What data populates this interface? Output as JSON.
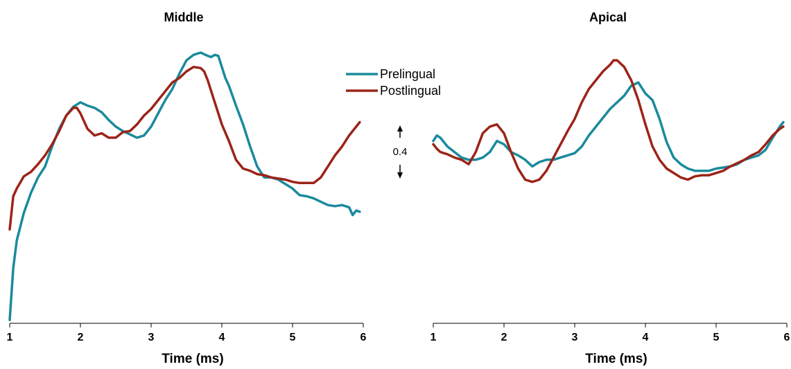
{
  "chart_data": [
    {
      "type": "line",
      "title": "Middle",
      "xlabel": "Time (ms)",
      "ylabel": "",
      "xlim": [
        1,
        6
      ],
      "ylim": [
        -1.6,
        0.95
      ],
      "xticks": [
        "1",
        "2",
        "3",
        "4",
        "5",
        "6"
      ],
      "series": [
        {
          "name": "Prelingual",
          "color": "#1a8a9c",
          "x": [
            1.0,
            1.05,
            1.1,
            1.2,
            1.3,
            1.4,
            1.5,
            1.6,
            1.7,
            1.8,
            1.9,
            2.0,
            2.1,
            2.2,
            2.3,
            2.4,
            2.5,
            2.6,
            2.7,
            2.8,
            2.9,
            3.0,
            3.1,
            3.2,
            3.3,
            3.4,
            3.5,
            3.6,
            3.7,
            3.8,
            3.85,
            3.9,
            3.95,
            4.0,
            4.05,
            4.1,
            4.2,
            4.3,
            4.4,
            4.5,
            4.6,
            4.7,
            4.8,
            4.9,
            5.0,
            5.1,
            5.2,
            5.3,
            5.4,
            5.5,
            5.6,
            5.7,
            5.8,
            5.85,
            5.9,
            5.95
          ],
          "y": [
            -1.57,
            -1.1,
            -0.85,
            -0.6,
            -0.42,
            -0.28,
            -0.18,
            0.0,
            0.16,
            0.28,
            0.36,
            0.4,
            0.37,
            0.35,
            0.31,
            0.24,
            0.18,
            0.14,
            0.11,
            0.08,
            0.1,
            0.18,
            0.3,
            0.42,
            0.52,
            0.66,
            0.78,
            0.83,
            0.85,
            0.82,
            0.81,
            0.83,
            0.82,
            0.72,
            0.62,
            0.55,
            0.37,
            0.2,
            0.0,
            -0.18,
            -0.28,
            -0.28,
            -0.3,
            -0.34,
            -0.38,
            -0.44,
            -0.45,
            -0.47,
            -0.5,
            -0.53,
            -0.54,
            -0.53,
            -0.55,
            -0.62,
            -0.58,
            -0.59
          ]
        },
        {
          "name": "Postlingual",
          "color": "#9c2318",
          "x": [
            1.0,
            1.05,
            1.1,
            1.2,
            1.3,
            1.4,
            1.5,
            1.6,
            1.7,
            1.8,
            1.9,
            1.95,
            2.0,
            2.1,
            2.2,
            2.3,
            2.4,
            2.5,
            2.6,
            2.7,
            2.8,
            2.9,
            3.0,
            3.1,
            3.2,
            3.3,
            3.4,
            3.5,
            3.6,
            3.7,
            3.75,
            3.8,
            3.85,
            3.9,
            4.0,
            4.1,
            4.2,
            4.3,
            4.4,
            4.5,
            4.6,
            4.7,
            4.8,
            4.9,
            5.0,
            5.1,
            5.2,
            5.3,
            5.4,
            5.5,
            5.6,
            5.7,
            5.8,
            5.9,
            5.95
          ],
          "y": [
            -0.75,
            -0.45,
            -0.38,
            -0.27,
            -0.23,
            -0.16,
            -0.08,
            0.02,
            0.14,
            0.28,
            0.35,
            0.35,
            0.3,
            0.16,
            0.1,
            0.12,
            0.08,
            0.08,
            0.13,
            0.14,
            0.2,
            0.28,
            0.34,
            0.42,
            0.5,
            0.58,
            0.62,
            0.68,
            0.72,
            0.71,
            0.68,
            0.6,
            0.5,
            0.4,
            0.2,
            0.05,
            -0.12,
            -0.2,
            -0.22,
            -0.25,
            -0.26,
            -0.28,
            -0.29,
            -0.3,
            -0.32,
            -0.33,
            -0.33,
            -0.33,
            -0.28,
            -0.18,
            -0.08,
            0.0,
            0.1,
            0.18,
            0.22
          ]
        }
      ]
    },
    {
      "type": "line",
      "title": "Apical",
      "xlabel": "Time (ms)",
      "ylabel": "",
      "xlim": [
        1,
        6
      ],
      "ylim": [
        -1.6,
        0.95
      ],
      "xticks": [
        "1",
        "2",
        "3",
        "4",
        "5",
        "6"
      ],
      "series": [
        {
          "name": "Prelingual",
          "color": "#1a8a9c",
          "x": [
            1.0,
            1.05,
            1.1,
            1.2,
            1.3,
            1.4,
            1.5,
            1.6,
            1.7,
            1.8,
            1.9,
            2.0,
            2.1,
            2.2,
            2.3,
            2.4,
            2.5,
            2.6,
            2.7,
            2.8,
            2.9,
            3.0,
            3.1,
            3.2,
            3.3,
            3.4,
            3.5,
            3.6,
            3.7,
            3.8,
            3.9,
            4.0,
            4.1,
            4.2,
            4.3,
            4.4,
            4.5,
            4.6,
            4.7,
            4.8,
            4.9,
            5.0,
            5.1,
            5.2,
            5.3,
            5.4,
            5.5,
            5.6,
            5.7,
            5.8,
            5.9,
            5.95
          ],
          "y": [
            0.05,
            0.1,
            0.08,
            0.0,
            -0.05,
            -0.1,
            -0.12,
            -0.12,
            -0.1,
            -0.05,
            0.05,
            0.02,
            -0.05,
            -0.08,
            -0.12,
            -0.18,
            -0.14,
            -0.12,
            -0.12,
            -0.1,
            -0.08,
            -0.06,
            0.0,
            0.1,
            0.18,
            0.26,
            0.34,
            0.4,
            0.46,
            0.55,
            0.58,
            0.48,
            0.42,
            0.25,
            0.04,
            -0.1,
            -0.16,
            -0.2,
            -0.22,
            -0.22,
            -0.22,
            -0.2,
            -0.19,
            -0.18,
            -0.16,
            -0.12,
            -0.1,
            -0.08,
            -0.03,
            0.08,
            0.18,
            0.22
          ]
        },
        {
          "name": "Postlingual",
          "color": "#9c2318",
          "x": [
            1.0,
            1.05,
            1.1,
            1.2,
            1.3,
            1.4,
            1.5,
            1.6,
            1.7,
            1.8,
            1.9,
            2.0,
            2.1,
            2.2,
            2.3,
            2.4,
            2.5,
            2.6,
            2.7,
            2.8,
            2.9,
            3.0,
            3.1,
            3.2,
            3.3,
            3.4,
            3.5,
            3.55,
            3.6,
            3.7,
            3.8,
            3.9,
            4.0,
            4.1,
            4.2,
            4.3,
            4.4,
            4.5,
            4.6,
            4.7,
            4.8,
            4.9,
            5.0,
            5.1,
            5.2,
            5.3,
            5.4,
            5.5,
            5.6,
            5.7,
            5.8,
            5.9,
            5.95
          ],
          "y": [
            0.02,
            -0.02,
            -0.05,
            -0.07,
            -0.1,
            -0.12,
            -0.16,
            -0.05,
            0.12,
            0.18,
            0.2,
            0.12,
            -0.05,
            -0.2,
            -0.3,
            -0.32,
            -0.3,
            -0.22,
            -0.1,
            0.02,
            0.14,
            0.25,
            0.4,
            0.52,
            0.6,
            0.68,
            0.74,
            0.78,
            0.78,
            0.72,
            0.6,
            0.42,
            0.2,
            0.0,
            -0.12,
            -0.2,
            -0.24,
            -0.28,
            -0.3,
            -0.27,
            -0.26,
            -0.26,
            -0.24,
            -0.22,
            -0.18,
            -0.15,
            -0.12,
            -0.08,
            -0.05,
            0.02,
            0.1,
            0.16,
            0.18
          ]
        }
      ]
    }
  ],
  "legend": {
    "items": [
      {
        "label": "Prelingual",
        "color": "#1a8a9c"
      },
      {
        "label": "Postlingual",
        "color": "#9c2318"
      }
    ],
    "placement": "top-center"
  },
  "scale_bar": {
    "value": 0.4,
    "label": "0.4"
  }
}
